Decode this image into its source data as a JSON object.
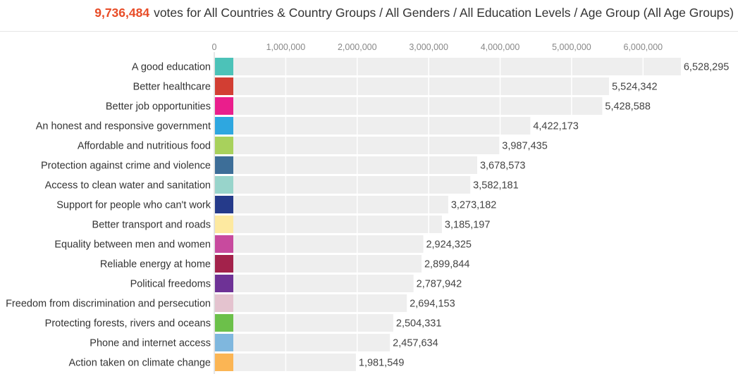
{
  "header": {
    "total_votes": "9,736,484",
    "description": "votes for All Countries & Country Groups / All Genders / All Education Levels / Age Group (All Age Groups)"
  },
  "chart_data": {
    "type": "bar",
    "orientation": "horizontal",
    "title": "",
    "xlabel": "",
    "ylabel": "",
    "xlim": [
      0,
      6500000
    ],
    "grid": true,
    "ticks": [
      {
        "value": 0,
        "label": "0"
      },
      {
        "value": 1000000,
        "label": "1,000,000"
      },
      {
        "value": 2000000,
        "label": "2,000,000"
      },
      {
        "value": 3000000,
        "label": "3,000,000"
      },
      {
        "value": 4000000,
        "label": "4,000,000"
      },
      {
        "value": 5000000,
        "label": "5,000,000"
      },
      {
        "value": 6000000,
        "label": "6,000,000"
      }
    ],
    "categories": [
      "A good education",
      "Better healthcare",
      "Better job opportunities",
      "An honest and responsive government",
      "Affordable and nutritious food",
      "Protection against crime and violence",
      "Access to clean water and sanitation",
      "Support for people who can't work",
      "Better transport and roads",
      "Equality between men and women",
      "Reliable energy at home",
      "Political freedoms",
      "Freedom from discrimination and persecution",
      "Protecting forests, rivers and oceans",
      "Phone and internet access",
      "Action taken on climate change"
    ],
    "values": [
      6528295,
      5524342,
      5428588,
      4422173,
      3987435,
      3678573,
      3582181,
      3273182,
      3185197,
      2924325,
      2899844,
      2787942,
      2694153,
      2504331,
      2457634,
      1981549
    ],
    "value_labels": [
      "6,528,295",
      "5,524,342",
      "5,428,588",
      "4,422,173",
      "3,987,435",
      "3,678,573",
      "3,582,181",
      "3,273,182",
      "3,185,197",
      "2,924,325",
      "2,899,844",
      "2,787,942",
      "2,694,153",
      "2,504,331",
      "2,457,634",
      "1,981,549"
    ],
    "colors": [
      "#4cc2b8",
      "#d23e33",
      "#ea1e8c",
      "#2ea7e0",
      "#a8d15c",
      "#3d6e98",
      "#98d4cb",
      "#253a8a",
      "#fde9a0",
      "#c84a9e",
      "#a3224b",
      "#6e3296",
      "#e4c3cf",
      "#6cc04a",
      "#7fb7de",
      "#fbb554"
    ],
    "bar_color": "#eeeeee"
  }
}
